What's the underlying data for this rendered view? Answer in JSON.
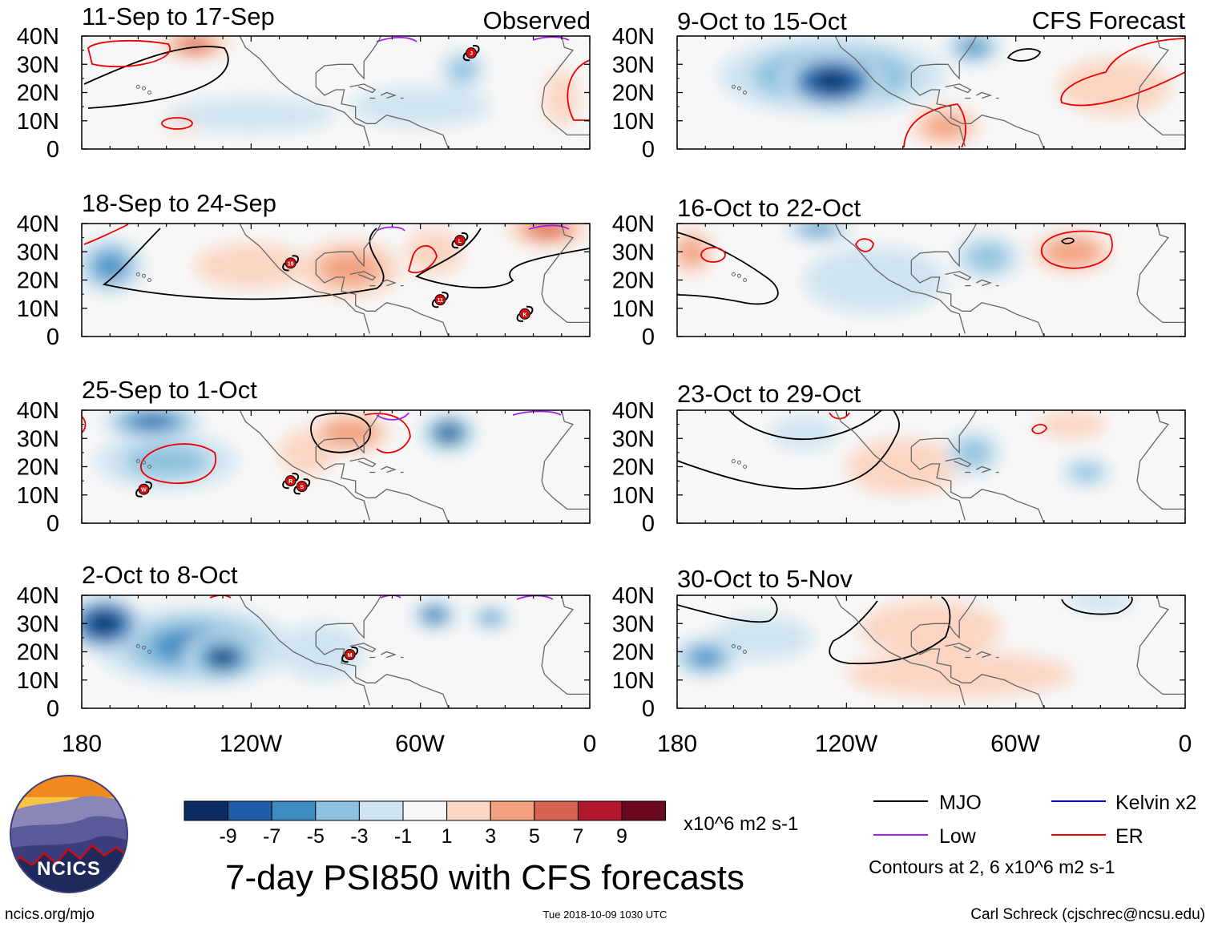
{
  "figure_title": "7-day PSI850 with CFS forecasts",
  "column_labels": {
    "left": "Observed",
    "right": "CFS Forecast"
  },
  "colorbar": {
    "units": "x10^6 m2 s-1",
    "tick_labels": [
      "-9",
      "-7",
      "-5",
      "-3",
      "-1",
      "1",
      "3",
      "5",
      "7",
      "9"
    ],
    "colors": [
      "#0b2d63",
      "#1f5fa8",
      "#3f8cc4",
      "#8fc2e0",
      "#cfe4f1",
      "#f7f7f7",
      "#fbd5c2",
      "#f2a280",
      "#d7624f",
      "#b2182b",
      "#6b0a1f"
    ]
  },
  "legend": {
    "items": [
      {
        "label": "MJO",
        "color": "#000000"
      },
      {
        "label": "Kelvin x2",
        "color": "#0000ee"
      },
      {
        "label": "Low",
        "color": "#a020f0"
      },
      {
        "label": "ER",
        "color": "#ee0000"
      }
    ],
    "note": "Contours at 2, 6 x10^6 m2 s-1"
  },
  "logo": {
    "text": "NCICS"
  },
  "footer": {
    "url": "ncics.org/mjo",
    "timestamp": "Tue 2018-10-09 1030 UTC",
    "credit": "Carl Schreck (cjschrec@ncsu.edu)"
  },
  "chart_data": {
    "type": "heatmap",
    "variable": "PSI850 anomaly",
    "lat_ticks": [
      "40N",
      "30N",
      "20N",
      "10N",
      "0"
    ],
    "lon_ticks": [
      "180",
      "120W",
      "60W",
      "0"
    ],
    "xlim": [
      -180,
      0
    ],
    "ylim": [
      0,
      40
    ],
    "panels": [
      {
        "title": "11-Sep to 17-Sep",
        "kind": "observed",
        "blobs": [
          {
            "lon": -140,
            "lat": 37,
            "value": 6,
            "r_lon": 12,
            "r_lat": 5
          },
          {
            "lon": -45,
            "lat": 28,
            "value": -4,
            "r_lon": 8,
            "r_lat": 7
          },
          {
            "lon": -120,
            "lat": 12,
            "value": -1.5,
            "r_lon": 30,
            "r_lat": 6
          },
          {
            "lon": -60,
            "lat": 15,
            "value": -1.5,
            "r_lon": 25,
            "r_lat": 7
          },
          {
            "lon": -145,
            "lat": 8,
            "value": 2,
            "r_lon": 6,
            "r_lat": 2
          },
          {
            "lon": -10,
            "lat": 18,
            "value": 2,
            "r_lon": 6,
            "r_lat": 10
          }
        ],
        "storms": [
          {
            "label": "J",
            "lon": -42,
            "lat": 34
          }
        ]
      },
      {
        "title": "18-Sep to 24-Sep",
        "kind": "observed",
        "blobs": [
          {
            "lon": -170,
            "lat": 25,
            "value": -5,
            "r_lon": 12,
            "r_lat": 10
          },
          {
            "lon": -85,
            "lat": 24,
            "value": 4,
            "r_lon": 18,
            "r_lat": 10
          },
          {
            "lon": -15,
            "lat": 38,
            "value": 6,
            "r_lon": 14,
            "r_lat": 6
          },
          {
            "lon": -120,
            "lat": 25,
            "value": 2,
            "r_lon": 20,
            "r_lat": 8
          },
          {
            "lon": -55,
            "lat": 30,
            "value": 2,
            "r_lon": 10,
            "r_lat": 8
          }
        ],
        "storms": [
          {
            "label": "19",
            "lon": -106,
            "lat": 26
          },
          {
            "label": "L",
            "lon": -46,
            "lat": 34
          },
          {
            "label": "11",
            "lon": -53,
            "lat": 13
          },
          {
            "label": "K",
            "lon": -23,
            "lat": 8
          }
        ]
      },
      {
        "title": "25-Sep to 1-Oct",
        "kind": "observed",
        "blobs": [
          {
            "lon": -155,
            "lat": 36,
            "value": -8,
            "r_lon": 18,
            "r_lat": 6
          },
          {
            "lon": -50,
            "lat": 32,
            "value": -9,
            "r_lon": 10,
            "r_lat": 7
          },
          {
            "lon": -150,
            "lat": 22,
            "value": -4,
            "r_lon": 25,
            "r_lat": 10
          },
          {
            "lon": -85,
            "lat": 32,
            "value": 5,
            "r_lon": 14,
            "r_lat": 7
          },
          {
            "lon": -100,
            "lat": 25,
            "value": 2,
            "r_lon": 10,
            "r_lat": 8
          }
        ],
        "storms": [
          {
            "label": "W",
            "lon": -158,
            "lat": 12
          },
          {
            "label": "R",
            "lon": -106,
            "lat": 15
          },
          {
            "label": "S",
            "lon": -102,
            "lat": 13
          }
        ]
      },
      {
        "title": "2-Oct to 8-Oct",
        "kind": "observed",
        "blobs": [
          {
            "lon": -172,
            "lat": 30,
            "value": -10,
            "r_lon": 14,
            "r_lat": 10
          },
          {
            "lon": -130,
            "lat": 18,
            "value": -9,
            "r_lon": 14,
            "r_lat": 9
          },
          {
            "lon": -140,
            "lat": 22,
            "value": -5,
            "r_lon": 35,
            "r_lat": 14
          },
          {
            "lon": -55,
            "lat": 33,
            "value": -8,
            "r_lon": 8,
            "r_lat": 5
          },
          {
            "lon": -35,
            "lat": 32,
            "value": -5,
            "r_lon": 7,
            "r_lat": 4
          },
          {
            "lon": -95,
            "lat": 20,
            "value": -2,
            "r_lon": 15,
            "r_lat": 10
          }
        ],
        "storms": [
          {
            "label": "M",
            "lon": -85,
            "lat": 19
          }
        ]
      },
      {
        "title": "9-Oct to 15-Oct",
        "kind": "forecast",
        "blobs": [
          {
            "lon": -125,
            "lat": 24,
            "value": -10,
            "r_lon": 18,
            "r_lat": 10
          },
          {
            "lon": -125,
            "lat": 26,
            "value": -5,
            "r_lon": 40,
            "r_lat": 14
          },
          {
            "lon": -75,
            "lat": 36,
            "value": -6,
            "r_lon": 10,
            "r_lat": 6
          },
          {
            "lon": -85,
            "lat": 8,
            "value": 4,
            "r_lon": 12,
            "r_lat": 7
          },
          {
            "lon": -25,
            "lat": 22,
            "value": 2,
            "r_lon": 20,
            "r_lat": 10
          }
        ],
        "storms": []
      },
      {
        "title": "16-Oct to 22-Oct",
        "kind": "forecast",
        "blobs": [
          {
            "lon": -130,
            "lat": 38,
            "value": -5,
            "r_lon": 12,
            "r_lat": 4
          },
          {
            "lon": -70,
            "lat": 28,
            "value": -4,
            "r_lon": 12,
            "r_lat": 8
          },
          {
            "lon": -40,
            "lat": 30,
            "value": 5,
            "r_lon": 14,
            "r_lat": 7
          },
          {
            "lon": -175,
            "lat": 30,
            "value": 4,
            "r_lon": 8,
            "r_lat": 8
          },
          {
            "lon": -110,
            "lat": 20,
            "value": -2,
            "r_lon": 25,
            "r_lat": 12
          }
        ],
        "storms": []
      },
      {
        "title": "23-Oct to 29-Oct",
        "kind": "forecast",
        "blobs": [
          {
            "lon": -135,
            "lat": 32,
            "value": -2,
            "r_lon": 12,
            "r_lat": 6
          },
          {
            "lon": -75,
            "lat": 25,
            "value": -3,
            "r_lon": 10,
            "r_lat": 8
          },
          {
            "lon": -35,
            "lat": 18,
            "value": -4,
            "r_lon": 9,
            "r_lat": 5
          },
          {
            "lon": -100,
            "lat": 20,
            "value": 2,
            "r_lon": 20,
            "r_lat": 10
          },
          {
            "lon": -40,
            "lat": 35,
            "value": 2,
            "r_lon": 12,
            "r_lat": 5
          }
        ],
        "storms": []
      },
      {
        "title": "30-Oct to 5-Nov",
        "kind": "forecast",
        "blobs": [
          {
            "lon": -170,
            "lat": 18,
            "value": -5,
            "r_lon": 12,
            "r_lat": 7
          },
          {
            "lon": -90,
            "lat": 28,
            "value": 3,
            "r_lon": 25,
            "r_lat": 10
          },
          {
            "lon": -80,
            "lat": 12,
            "value": 2,
            "r_lon": 40,
            "r_lat": 8
          },
          {
            "lon": -150,
            "lat": 25,
            "value": -2,
            "r_lon": 18,
            "r_lat": 8
          },
          {
            "lon": -30,
            "lat": 38,
            "value": -2,
            "r_lon": 12,
            "r_lat": 4
          }
        ],
        "storms": []
      }
    ]
  }
}
